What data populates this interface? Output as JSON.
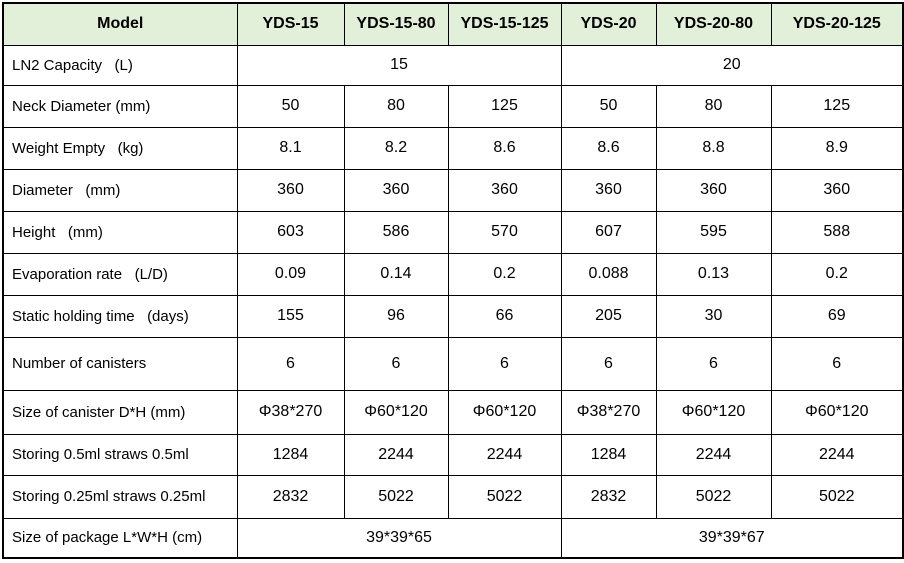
{
  "page": {
    "background_color": "#ffffff",
    "text_color": "#000000"
  },
  "table": {
    "header_bg": "#e2efd9",
    "border_color": "#000000",
    "header": [
      "Model",
      "YDS-15",
      "YDS-15-80",
      "YDS-15-125",
      "YDS-20",
      "YDS-20-80",
      "YDS-20-125"
    ],
    "rows": [
      {
        "label": "LN2 Capacity   (L)",
        "cells": [
          {
            "text": "15",
            "span": 3
          },
          {
            "text": "20",
            "span": 3
          }
        ]
      },
      {
        "label": "Neck Diameter (mm)",
        "cells": [
          "50",
          "80",
          "125",
          "50",
          "80",
          "125"
        ]
      },
      {
        "label": "Weight Empty   (kg)",
        "cells": [
          "8.1",
          "8.2",
          "8.6",
          "8.6",
          "8.8",
          "8.9"
        ]
      },
      {
        "label": "Diameter   (mm)",
        "cells": [
          "360",
          "360",
          "360",
          "360",
          "360",
          "360"
        ]
      },
      {
        "label": "Height   (mm)",
        "cells": [
          "603",
          "586",
          "570",
          "607",
          "595",
          "588"
        ]
      },
      {
        "label": "Evaporation rate   (L/D)",
        "cells": [
          "0.09",
          "0.14",
          "0.2",
          "0.088",
          "0.13",
          "0.2"
        ]
      },
      {
        "label": "Static holding time   (days)",
        "cells": [
          "155",
          "96",
          "66",
          "205",
          "30",
          "69"
        ]
      },
      {
        "label": "Number of canisters",
        "cells": [
          "6",
          "6",
          "6",
          "6",
          "6",
          "6"
        ]
      },
      {
        "label": "Size of canister D*H (mm)",
        "cells": [
          "Φ38*270",
          "Φ60*120",
          "Φ60*120",
          "Φ38*270",
          "Φ60*120",
          "Φ60*120"
        ]
      },
      {
        "label": "Storing 0.5ml straws 0.5ml",
        "cells": [
          "1284",
          "2244",
          "2244",
          "1284",
          "2244",
          "2244"
        ]
      },
      {
        "label": "Storing 0.25ml straws 0.25ml",
        "cells": [
          "2832",
          "5022",
          "5022",
          "2832",
          "5022",
          "5022"
        ]
      },
      {
        "label": "Size of package L*W*H (cm)",
        "cells": [
          {
            "text": "39*39*65",
            "span": 3
          },
          {
            "text": "39*39*67",
            "span": 3
          }
        ]
      }
    ]
  }
}
